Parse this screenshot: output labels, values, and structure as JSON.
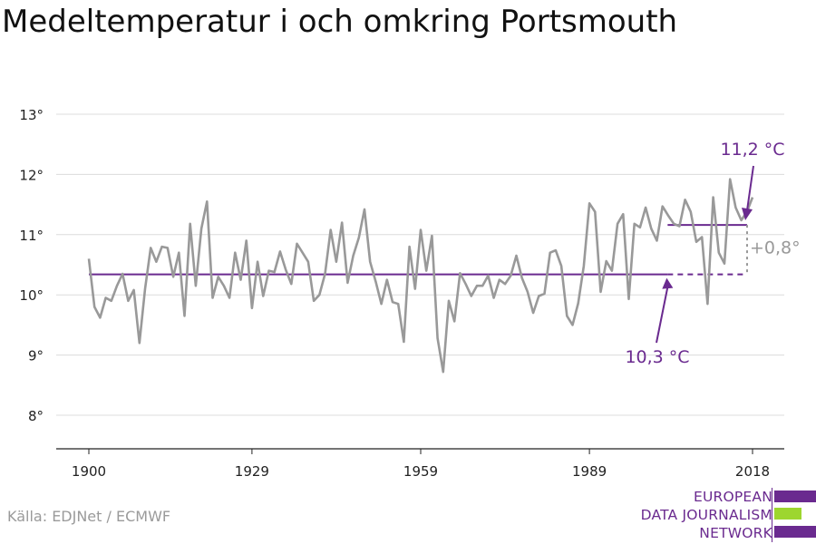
{
  "title": "Medeltemperatur i och omkring Portsmouth",
  "source": "Källa: EDJNet / ECMWF",
  "logo": {
    "lines": [
      "EUROPEAN",
      "DATA JOURNALISM",
      "NETWORK"
    ],
    "colors": [
      "#6a2a8f",
      "#9dd62f",
      "#6a2a8f"
    ]
  },
  "chart_data": {
    "type": "line",
    "title": "Medeltemperatur i och omkring Portsmouth",
    "xlabel": "",
    "ylabel": "",
    "xlim": [
      1900,
      2018
    ],
    "ylim": [
      7.5,
      13.3
    ],
    "x_ticks": [
      1900,
      1929,
      1959,
      1989,
      2018
    ],
    "x_tick_labels": [
      "1900",
      "1929",
      "1959",
      "1989",
      "2018"
    ],
    "y_ticks": [
      8,
      9,
      10,
      11,
      12,
      13
    ],
    "y_tick_labels": [
      "8°",
      "9°",
      "10°",
      "11°",
      "12°",
      "13°"
    ],
    "grid": true,
    "colors": {
      "line": "#999999",
      "reference": "#6a2a8f",
      "diff": "#999999"
    },
    "series": [
      {
        "x": [
          1900,
          1901,
          1902,
          1903,
          1904,
          1905,
          1906,
          1907,
          1908,
          1909,
          1910,
          1911,
          1912,
          1913,
          1914,
          1915,
          1916,
          1917,
          1918,
          1919,
          1920,
          1921,
          1922,
          1923,
          1924,
          1925,
          1926,
          1927,
          1928,
          1929,
          1930,
          1931,
          1932,
          1933,
          1934,
          1935,
          1936,
          1937,
          1938,
          1939,
          1940,
          1941,
          1942,
          1943,
          1944,
          1945,
          1946,
          1947,
          1948,
          1949,
          1950,
          1951,
          1952,
          1953,
          1954,
          1955,
          1956,
          1957,
          1958,
          1959,
          1960,
          1961,
          1962,
          1963,
          1964,
          1965,
          1966,
          1967,
          1968,
          1969,
          1970,
          1971,
          1972,
          1973,
          1974,
          1975,
          1976,
          1977,
          1978,
          1979,
          1980,
          1981,
          1982,
          1983,
          1984,
          1985,
          1986,
          1987,
          1988,
          1989,
          1990,
          1991,
          1992,
          1993,
          1994,
          1995,
          1996,
          1997,
          1998,
          1999,
          2000,
          2001,
          2002,
          2003,
          2004,
          2005,
          2006,
          2007,
          2008,
          2009,
          2010,
          2011,
          2012,
          2013,
          2014,
          2015,
          2016,
          2017,
          2018
        ],
        "values": [
          10.6,
          9.8,
          9.62,
          9.95,
          9.9,
          10.15,
          10.35,
          9.9,
          10.08,
          9.2,
          10.1,
          10.78,
          10.55,
          10.8,
          10.78,
          10.3,
          10.7,
          9.65,
          11.18,
          10.15,
          11.1,
          11.55,
          9.95,
          10.3,
          10.15,
          9.95,
          10.7,
          10.25,
          10.9,
          9.78,
          10.55,
          9.98,
          10.4,
          10.38,
          10.72,
          10.42,
          10.18,
          10.85,
          10.7,
          10.55,
          9.9,
          10.0,
          10.35,
          11.08,
          10.55,
          11.2,
          10.2,
          10.65,
          10.95,
          11.42,
          10.55,
          10.22,
          9.85,
          10.25,
          9.88,
          9.85,
          9.22,
          10.8,
          10.1,
          11.08,
          10.4,
          10.98,
          9.28,
          8.72,
          9.9,
          9.56,
          10.36,
          10.18,
          9.98,
          10.15,
          10.15,
          10.32,
          9.95,
          10.25,
          10.18,
          10.32,
          10.65,
          10.28,
          10.05,
          9.7,
          9.98,
          10.02,
          10.7,
          10.74,
          10.48,
          9.65,
          9.5,
          9.86,
          10.48,
          11.52,
          11.38,
          10.05,
          10.56,
          10.4,
          11.18,
          11.34,
          9.93,
          11.18,
          11.12,
          11.45,
          11.1,
          10.9,
          11.47,
          11.32,
          11.18,
          11.14,
          11.58,
          11.38,
          10.88,
          10.96,
          9.85,
          11.62,
          10.7,
          10.52,
          11.92,
          11.45,
          11.24,
          11.38,
          11.62
        ]
      }
    ],
    "reference": {
      "value": 10.34,
      "x_start": 1900,
      "x_end": 2000,
      "dash_end": 2018
    },
    "recent": {
      "value": 11.16,
      "x_start": 2000,
      "x_end": 2018
    },
    "annotations": {
      "baseline_label": "10,3 °C",
      "recent_label": "11,2 °C",
      "diff_label": "+0,8°"
    }
  }
}
